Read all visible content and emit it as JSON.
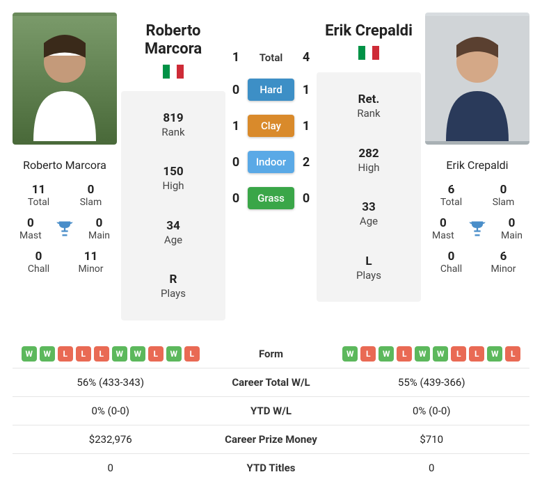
{
  "colors": {
    "hard": "#3d8fc6",
    "clay": "#d98a2b",
    "indoor": "#5aa9e6",
    "grass": "#3aa648",
    "win": "#5cb85c",
    "loss": "#e96a54",
    "flag_green": "#009246",
    "flag_white": "#ffffff",
    "flag_red": "#ce2b37",
    "trophy": "#4a8ec9"
  },
  "player1": {
    "name": "Roberto Marcora",
    "rank": "819",
    "rank_label": "Rank",
    "high": "150",
    "high_label": "High",
    "age": "34",
    "age_label": "Age",
    "plays": "R",
    "plays_label": "Plays",
    "total": "11",
    "total_label": "Total",
    "slam": "0",
    "slam_label": "Slam",
    "mast": "0",
    "mast_label": "Mast",
    "main": "0",
    "main_label": "Main",
    "chall": "0",
    "chall_label": "Chall",
    "minor": "11",
    "minor_label": "Minor",
    "form": [
      "W",
      "W",
      "L",
      "L",
      "L",
      "W",
      "W",
      "L",
      "W",
      "L"
    ]
  },
  "player2": {
    "name": "Erik Crepaldi",
    "rank": "Ret.",
    "rank_label": "Rank",
    "high": "282",
    "high_label": "High",
    "age": "33",
    "age_label": "Age",
    "plays": "L",
    "plays_label": "Plays",
    "total": "6",
    "total_label": "Total",
    "slam": "0",
    "slam_label": "Slam",
    "mast": "0",
    "mast_label": "Mast",
    "main": "0",
    "main_label": "Main",
    "chall": "0",
    "chall_label": "Chall",
    "minor": "6",
    "minor_label": "Minor",
    "form": [
      "W",
      "L",
      "W",
      "L",
      "W",
      "W",
      "L",
      "L",
      "W",
      "L"
    ]
  },
  "h2h": {
    "total_label": "Total",
    "total_p1": "1",
    "total_p2": "4",
    "hard_label": "Hard",
    "hard_p1": "0",
    "hard_p2": "1",
    "clay_label": "Clay",
    "clay_p1": "1",
    "clay_p2": "1",
    "indoor_label": "Indoor",
    "indoor_p1": "0",
    "indoor_p2": "2",
    "grass_label": "Grass",
    "grass_p1": "0",
    "grass_p2": "0"
  },
  "table": {
    "form_label": "Form",
    "career_wl_label": "Career Total W/L",
    "career_wl_p1": "56% (433-343)",
    "career_wl_p2": "55% (439-366)",
    "ytd_wl_label": "YTD W/L",
    "ytd_wl_p1": "0% (0-0)",
    "ytd_wl_p2": "0% (0-0)",
    "prize_label": "Career Prize Money",
    "prize_p1": "$232,976",
    "prize_p2": "$710",
    "ytd_titles_label": "YTD Titles",
    "ytd_titles_p1": "0",
    "ytd_titles_p2": "0"
  }
}
